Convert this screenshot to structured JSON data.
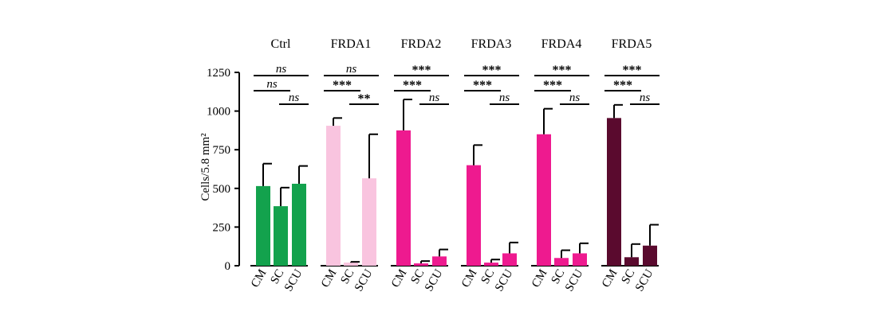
{
  "chart_data": {
    "type": "bar",
    "title": "",
    "ylabel": "Cells/5.8 mm²",
    "ylim": [
      0,
      1250
    ],
    "yticks": [
      "0",
      "250",
      "500",
      "750",
      "1000",
      "1250"
    ],
    "grid": false,
    "categories": [
      "CM",
      "SC",
      "SCU"
    ],
    "groups": [
      {
        "name": "Ctrl",
        "color": "#13a24d",
        "values": [
          515,
          385,
          530
        ],
        "errors": [
          145,
          120,
          115
        ],
        "significance": [
          {
            "pair": "CM-SCU",
            "label": "ns"
          },
          {
            "pair": "CM-SC",
            "label": "ns"
          },
          {
            "pair": "SC-SCU",
            "label": "ns"
          }
        ]
      },
      {
        "name": "FRDA1",
        "color": "#f9c4df",
        "values": [
          905,
          20,
          565
        ],
        "errors": [
          50,
          5,
          285
        ],
        "significance": [
          {
            "pair": "CM-SCU",
            "label": "ns"
          },
          {
            "pair": "CM-SC",
            "label": "***"
          },
          {
            "pair": "SC-SCU",
            "label": "**"
          }
        ]
      },
      {
        "name": "FRDA2",
        "color": "#ee1a8f",
        "values": [
          875,
          15,
          60
        ],
        "errors": [
          200,
          15,
          45
        ],
        "significance": [
          {
            "pair": "CM-SCU",
            "label": "***"
          },
          {
            "pair": "CM-SC",
            "label": "***"
          },
          {
            "pair": "SC-SCU",
            "label": "ns"
          }
        ]
      },
      {
        "name": "FRDA3",
        "color": "#ee1a8f",
        "values": [
          650,
          20,
          80
        ],
        "errors": [
          130,
          20,
          70
        ],
        "significance": [
          {
            "pair": "CM-SCU",
            "label": "***"
          },
          {
            "pair": "CM-SC",
            "label": "***"
          },
          {
            "pair": "SC-SCU",
            "label": "ns"
          }
        ]
      },
      {
        "name": "FRDA4",
        "color": "#ee1a8f",
        "values": [
          850,
          50,
          80
        ],
        "errors": [
          165,
          50,
          65
        ],
        "significance": [
          {
            "pair": "CM-SCU",
            "label": "***"
          },
          {
            "pair": "CM-SC",
            "label": "***"
          },
          {
            "pair": "SC-SCU",
            "label": "ns"
          }
        ]
      },
      {
        "name": "FRDA5",
        "color": "#5a0a2e",
        "values": [
          955,
          55,
          130
        ],
        "errors": [
          85,
          85,
          135
        ],
        "significance": [
          {
            "pair": "CM-SCU",
            "label": "***"
          },
          {
            "pair": "CM-SC",
            "label": "***"
          },
          {
            "pair": "SC-SCU",
            "label": "ns"
          }
        ]
      }
    ]
  }
}
